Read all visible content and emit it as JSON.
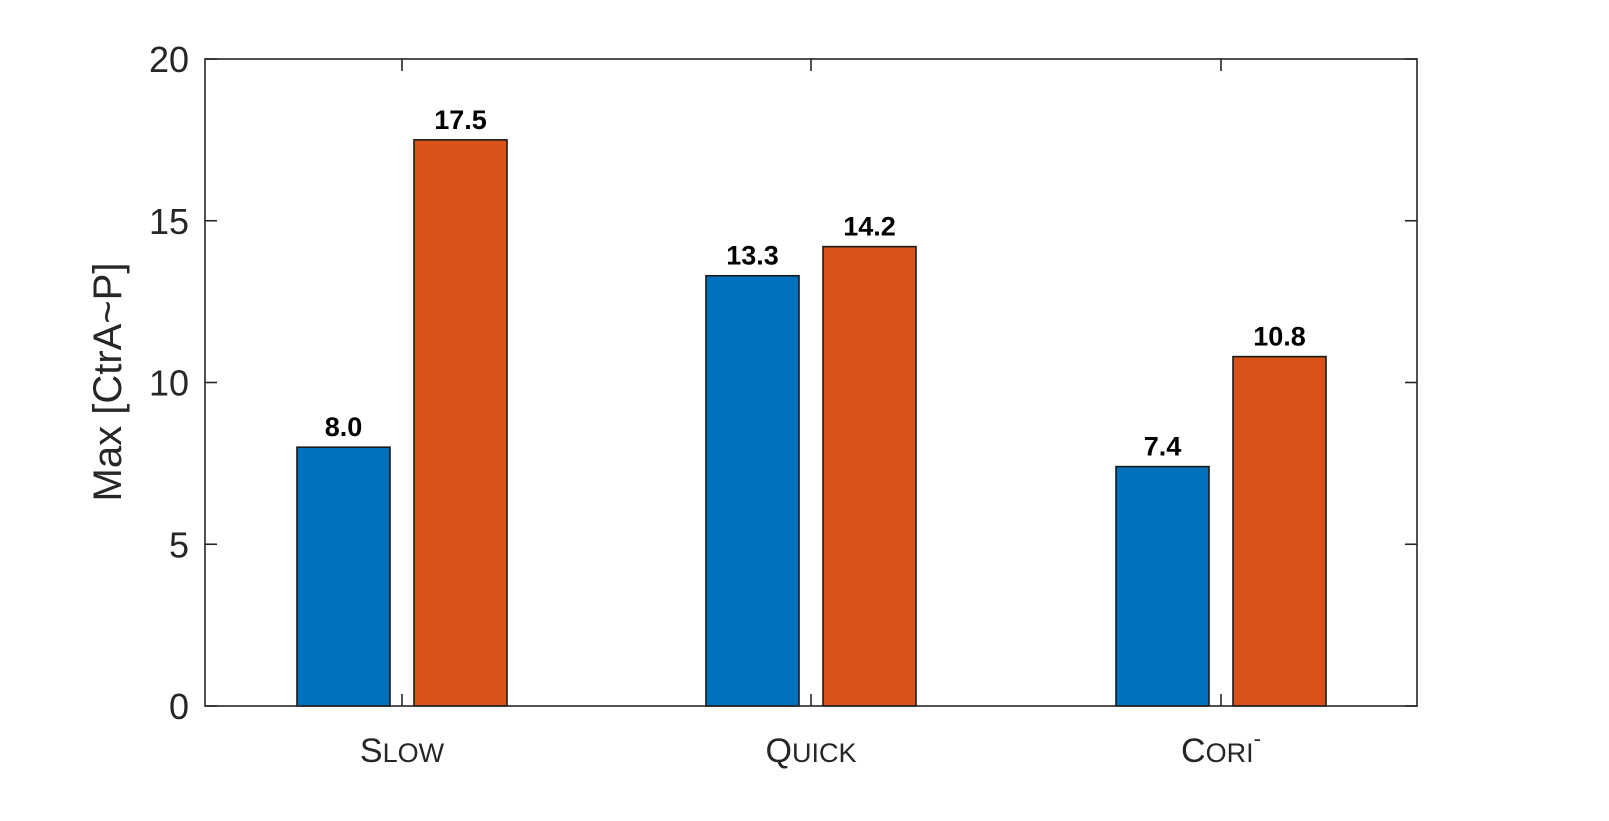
{
  "chart_data": {
    "type": "bar",
    "title": "",
    "xlabel": "",
    "ylabel": "Max [CtrA~P]",
    "ylim": [
      0,
      20
    ],
    "yticks": [
      0,
      5,
      10,
      15,
      20
    ],
    "categories": [
      {
        "initial": "S",
        "rest": "LOW",
        "sup": ""
      },
      {
        "initial": "Q",
        "rest": "UICK",
        "sup": ""
      },
      {
        "initial": "C",
        "rest": "ORI",
        "sup": "-"
      }
    ],
    "series": [
      {
        "color": "#0072BD",
        "values": [
          8.0,
          13.3,
          7.4
        ],
        "labels": [
          "8.0",
          "13.3",
          "7.4"
        ]
      },
      {
        "color": "#D95319",
        "values": [
          17.5,
          14.2,
          10.8
        ],
        "labels": [
          "17.5",
          "14.2",
          "10.8"
        ]
      }
    ],
    "grid": false,
    "box": true
  }
}
